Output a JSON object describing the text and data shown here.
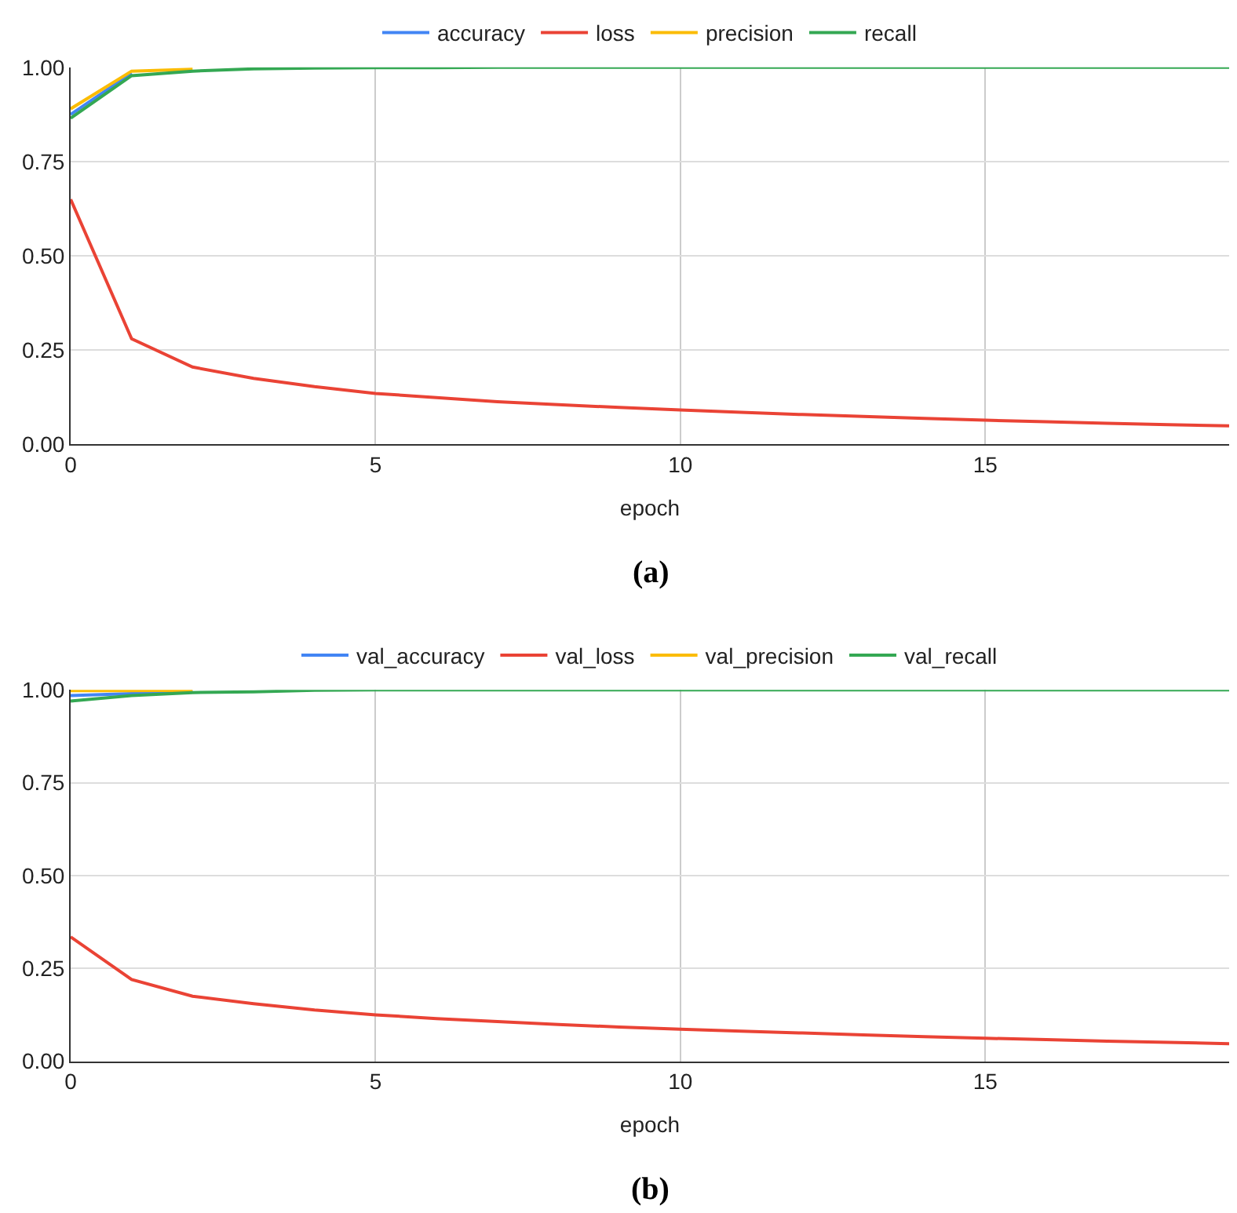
{
  "chart_data": [
    {
      "type": "line",
      "xlabel": "epoch",
      "annotations": [
        "(a)"
      ],
      "x": [
        0,
        1,
        2,
        3,
        4,
        5,
        6,
        7,
        8,
        9,
        10,
        11,
        12,
        13,
        14,
        15,
        16,
        17,
        18,
        19
      ],
      "xlim": [
        0,
        19
      ],
      "xticks": [
        0,
        5,
        10,
        15
      ],
      "ylim": [
        0,
        1
      ],
      "yticks": [
        {
          "value": 0,
          "label": "0.00"
        },
        {
          "value": 0.25,
          "label": "0.25"
        },
        {
          "value": 0.5,
          "label": "0.50"
        },
        {
          "value": 0.75,
          "label": "0.75"
        },
        {
          "value": 1,
          "label": "1.00"
        }
      ],
      "grid": true,
      "legend": "top",
      "marker": "none",
      "line_style": "solid",
      "series": [
        {
          "name": "accuracy",
          "color": "#4285f4",
          "values": [
            0.875,
            0.985,
            null,
            null,
            null,
            null,
            null,
            null,
            null,
            null,
            null,
            null,
            null,
            null,
            null,
            null,
            null,
            null,
            null,
            null
          ]
        },
        {
          "name": "loss",
          "color": "#ea4335",
          "values": [
            0.65,
            0.28,
            0.205,
            0.175,
            0.153,
            0.135,
            0.124,
            0.113,
            0.105,
            0.098,
            0.091,
            0.085,
            0.079,
            0.074,
            0.069,
            0.064,
            0.06,
            0.056,
            0.052,
            0.049
          ]
        },
        {
          "name": "precision",
          "color": "#fbbc04",
          "values": [
            0.89,
            0.99,
            0.995,
            null,
            null,
            null,
            null,
            null,
            null,
            null,
            null,
            null,
            null,
            null,
            null,
            null,
            null,
            null,
            null,
            null
          ]
        },
        {
          "name": "recall",
          "color": "#34a853",
          "values": [
            0.865,
            0.978,
            0.99,
            0.996,
            0.998,
            0.999,
            0.999,
            1,
            1,
            1,
            1,
            1,
            1,
            1,
            1,
            1,
            1,
            1,
            1,
            1
          ]
        }
      ]
    },
    {
      "type": "line",
      "xlabel": "epoch",
      "annotations": [
        "(b)"
      ],
      "x": [
        0,
        1,
        2,
        3,
        4,
        5,
        6,
        7,
        8,
        9,
        10,
        11,
        12,
        13,
        14,
        15,
        16,
        17,
        18,
        19
      ],
      "xlim": [
        0,
        19
      ],
      "xticks": [
        0,
        5,
        10,
        15
      ],
      "ylim": [
        0,
        1
      ],
      "yticks": [
        {
          "value": 0,
          "label": "0.00"
        },
        {
          "value": 0.25,
          "label": "0.25"
        },
        {
          "value": 0.5,
          "label": "0.50"
        },
        {
          "value": 0.75,
          "label": "0.75"
        },
        {
          "value": 1,
          "label": "1.00"
        }
      ],
      "grid": true,
      "legend": "top",
      "marker": "none",
      "line_style": "solid",
      "series": [
        {
          "name": "val_accuracy",
          "color": "#4285f4",
          "values": [
            0.985,
            0.99,
            0.995,
            null,
            null,
            null,
            null,
            null,
            null,
            null,
            null,
            null,
            null,
            null,
            null,
            null,
            null,
            null,
            null,
            null
          ]
        },
        {
          "name": "val_loss",
          "color": "#ea4335",
          "values": [
            0.335,
            0.22,
            0.175,
            0.155,
            0.138,
            0.125,
            0.115,
            0.107,
            0.099,
            0.092,
            0.086,
            0.081,
            0.076,
            0.071,
            0.066,
            0.062,
            0.058,
            0.054,
            0.051,
            0.047
          ]
        },
        {
          "name": "val_precision",
          "color": "#fbbc04",
          "values": [
            0.998,
            0.998,
            0.999,
            null,
            null,
            null,
            null,
            null,
            null,
            null,
            null,
            null,
            null,
            null,
            null,
            null,
            null,
            null,
            null,
            null
          ]
        },
        {
          "name": "val_recall",
          "color": "#34a853",
          "values": [
            0.97,
            0.985,
            0.993,
            0.995,
            0.999,
            1,
            1,
            1,
            1,
            1,
            1,
            1,
            1,
            1,
            1,
            1,
            1,
            1,
            1,
            1
          ]
        }
      ]
    }
  ]
}
